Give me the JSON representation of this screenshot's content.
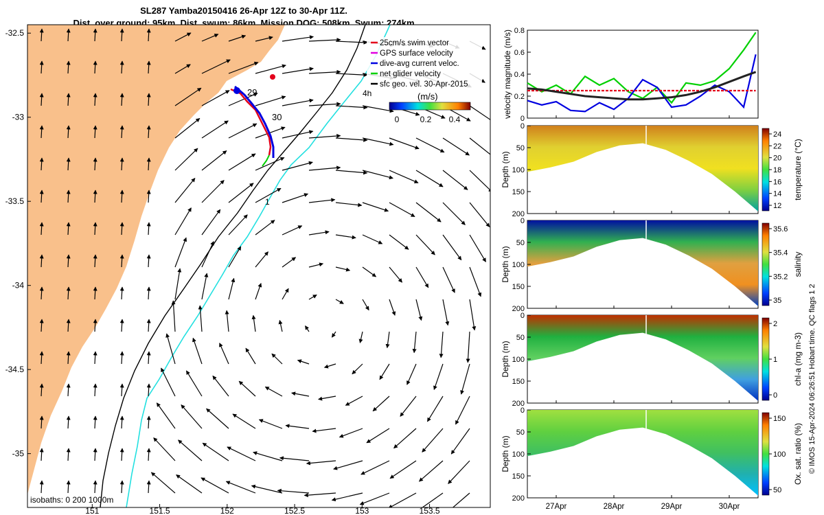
{
  "title_line1": "SL287 Yamba20150416 26-Apr 12Z to 30-Apr 11Z.",
  "title_line2": "Dist. over ground: 95km. Dist. swum: 86km. Mission DOG: 508km. Swum: 274km",
  "copyright": "© IMOS 15-Apr-2024 06:26:51 Hobart time. QC flags 1  2",
  "map": {
    "x_ticks": [
      "151",
      "151.5",
      "152",
      "152.5",
      "153",
      "153.5"
    ],
    "y_ticks": [
      "-32.5",
      "-33",
      "-33.5",
      "-34",
      "-34.5",
      "-35"
    ],
    "xlim": [
      150.52,
      153.95
    ],
    "ylim": [
      -35.32,
      -32.45
    ],
    "legend": [
      {
        "label": "25cm/s swim vector",
        "color": "#e3001b"
      },
      {
        "label": "GPS surface velocity",
        "color": "#e000e0"
      },
      {
        "label": "dive-avg current veloc.",
        "color": "#0000e0"
      },
      {
        "label": "net glider velocity",
        "color": "#00d000"
      },
      {
        "label": "sfc geo. vel. 30-Apr-2015",
        "color": "#000000"
      }
    ],
    "colorbar_label": "(m/s)",
    "colorbar_ticks": [
      "0",
      "0.2",
      "0.4"
    ],
    "day_labels": [
      "29",
      "30",
      "1",
      "4h"
    ],
    "isobath_text": "isobaths: 0   200  1000m",
    "land_color": "#f9c08b",
    "isobath_200_color": "#000000",
    "isobath_1000_color": "#22e0e0"
  },
  "panels": {
    "x_ticks": [
      "27Apr",
      "28Apr",
      "29Apr",
      "30Apr"
    ],
    "velocity_ylabel": "velocity magnitude (m/s)",
    "velocity_yticks": [
      "0",
      "0.2",
      "0.4",
      "0.6",
      "0.8"
    ],
    "depth_label": "Depth (m)",
    "sections": [
      {
        "label": "temperature (°C)",
        "ticks": [
          "12",
          "14",
          "16",
          "18",
          "20",
          "22",
          "24"
        ],
        "depth_ticks": [
          "0",
          "50",
          "100",
          "150",
          "200"
        ]
      },
      {
        "label": "salinity",
        "ticks": [
          "35",
          "35.2",
          "35.4",
          "35.6"
        ],
        "depth_ticks": [
          "0",
          "50",
          "100",
          "150",
          "200"
        ]
      },
      {
        "label": "chl-a (mg m-3)",
        "ticks": [
          "0",
          "1",
          "2"
        ],
        "depth_ticks": [
          "0",
          "50",
          "100",
          "150",
          "200"
        ]
      },
      {
        "label": "Ox. sat. ratio (%)",
        "ticks": [
          "50",
          "100",
          "150"
        ],
        "depth_ticks": [
          "0",
          "50",
          "100",
          "150",
          "200"
        ]
      }
    ]
  },
  "chart_data": [
    {
      "type": "line",
      "title": "",
      "ylabel": "velocity magnitude (m/s)",
      "x_categories": [
        "27Apr",
        "28Apr",
        "29Apr",
        "30Apr"
      ],
      "x_days": [
        26.5,
        26.75,
        27.0,
        27.25,
        27.5,
        27.75,
        28.0,
        28.25,
        28.5,
        28.75,
        29.0,
        29.25,
        29.5,
        29.75,
        30.0,
        30.25,
        30.46
      ],
      "ylim": [
        0,
        0.8
      ],
      "series": [
        {
          "color": "#00d000",
          "values": [
            0.32,
            0.24,
            0.3,
            0.22,
            0.38,
            0.3,
            0.36,
            0.24,
            0.18,
            0.28,
            0.14,
            0.32,
            0.3,
            0.34,
            0.45,
            0.62,
            0.78
          ]
        },
        {
          "color": "#0000e0",
          "values": [
            0.16,
            0.12,
            0.15,
            0.07,
            0.06,
            0.14,
            0.08,
            0.18,
            0.35,
            0.28,
            0.1,
            0.12,
            0.2,
            0.3,
            0.24,
            0.1,
            0.58
          ]
        },
        {
          "color": "#e3001b",
          "values": [
            0.25,
            0.25,
            0.25,
            0.25,
            0.25,
            0.25,
            0.25,
            0.25,
            0.25,
            0.25,
            0.25,
            0.25,
            0.25,
            0.25,
            0.25,
            0.25,
            0.25
          ]
        },
        {
          "color": "#222222",
          "values": [
            0.27,
            0.26,
            0.24,
            0.22,
            0.2,
            0.19,
            0.18,
            0.17,
            0.17,
            0.18,
            0.19,
            0.21,
            0.24,
            0.28,
            0.33,
            0.38,
            0.42
          ]
        }
      ]
    }
  ]
}
